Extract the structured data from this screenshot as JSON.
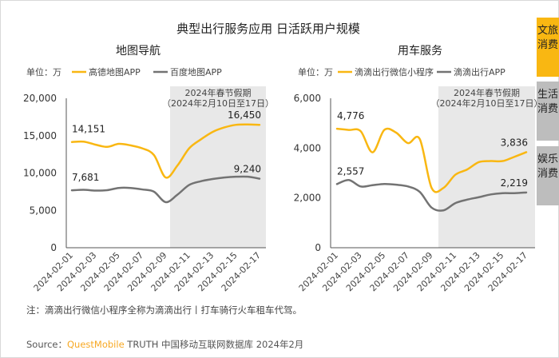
{
  "title": "典型出行服务应用 日活跃用户规模",
  "tabs": [
    {
      "label": "文旅消费",
      "active": true,
      "color": "#f9b712"
    },
    {
      "label": "生活消费",
      "active": false,
      "color": "#bdbdbd"
    },
    {
      "label": "娱乐消费",
      "active": false,
      "color": "#bdbdbd"
    }
  ],
  "note": "注：滴滴出行微信小程序全称为滴滴出行丨打车骑行火车租车代驾。",
  "source": {
    "prefix": "Source：",
    "brand": "QuestMobile",
    "text": " TRUTH 中国移动互联网数据库 2024年2月"
  },
  "chart_data": [
    {
      "type": "line",
      "title": "地图导航",
      "unit_label": "单位：万",
      "x": [
        "2024-02-01",
        "2024-02-02",
        "2024-02-03",
        "2024-02-04",
        "2024-02-05",
        "2024-02-06",
        "2024-02-07",
        "2024-02-08",
        "2024-02-09",
        "2024-02-10",
        "2024-02-11",
        "2024-02-12",
        "2024-02-13",
        "2024-02-14",
        "2024-02-15",
        "2024-02-16",
        "2024-02-17"
      ],
      "x_tick_labels": [
        "2024-02-01",
        "2024-02-03",
        "2024-02-05",
        "2024-02-07",
        "2024-02-09",
        "2024-02-11",
        "2024-02-13",
        "2024-02-15",
        "2024-02-17"
      ],
      "ylim": [
        0,
        20000
      ],
      "y_ticks": [
        "0",
        "5,000",
        "10,000",
        "15,000",
        "20,000"
      ],
      "y_tick_values": [
        0,
        5000,
        10000,
        15000,
        20000
      ],
      "legend": "top",
      "grid": false,
      "highlight": {
        "label1": "2024年春节假期",
        "label2": "（2024年2月10日至17日）",
        "from": "2024-02-10",
        "to": "2024-02-17"
      },
      "series": [
        {
          "name": "高德地图APP",
          "color": "#f9b712",
          "values": [
            14151,
            14200,
            13800,
            13500,
            13900,
            13700,
            13300,
            12400,
            9400,
            11000,
            13300,
            14500,
            15500,
            16100,
            16450,
            16500,
            16450
          ],
          "labels": {
            "first": "14,151",
            "last": "16,450"
          }
        },
        {
          "name": "百度地图APP",
          "color": "#737373",
          "values": [
            7681,
            7760,
            7650,
            7700,
            8000,
            8000,
            7800,
            7500,
            6100,
            7100,
            8400,
            8900,
            9200,
            9400,
            9500,
            9500,
            9240
          ],
          "labels": {
            "first": "7,681",
            "last": "9,240"
          }
        }
      ]
    },
    {
      "type": "line",
      "title": "用车服务",
      "unit_label": "单位：万",
      "x": [
        "2024-02-01",
        "2024-02-02",
        "2024-02-03",
        "2024-02-04",
        "2024-02-05",
        "2024-02-06",
        "2024-02-07",
        "2024-02-08",
        "2024-02-09",
        "2024-02-10",
        "2024-02-11",
        "2024-02-12",
        "2024-02-13",
        "2024-02-14",
        "2024-02-15",
        "2024-02-16",
        "2024-02-17"
      ],
      "x_tick_labels": [
        "2024-02-01",
        "2024-02-03",
        "2024-02-05",
        "2024-02-07",
        "2024-02-09",
        "2024-02-11",
        "2024-02-13",
        "2024-02-15",
        "2024-02-17"
      ],
      "ylim": [
        0,
        6000
      ],
      "y_ticks": [
        "0",
        "2,000",
        "4,000",
        "6,000"
      ],
      "y_tick_values": [
        0,
        2000,
        4000,
        6000
      ],
      "legend": "top",
      "grid": false,
      "highlight": {
        "label1": "2024年春节假期",
        "label2": "（2024年2月10日至17日）",
        "from": "2024-02-10",
        "to": "2024-02-17"
      },
      "series": [
        {
          "name": "滴滴出行微信小程序",
          "color": "#f9b712",
          "values": [
            4776,
            4730,
            4680,
            3830,
            4730,
            4620,
            4200,
            4360,
            2400,
            2400,
            2930,
            3140,
            3440,
            3480,
            3480,
            3650,
            3836
          ],
          "labels": {
            "first": "4,776",
            "last": "3,836"
          }
        },
        {
          "name": "滴滴出行APP",
          "color": "#737373",
          "values": [
            2557,
            2720,
            2460,
            2510,
            2560,
            2530,
            2460,
            2240,
            1610,
            1500,
            1790,
            1930,
            2030,
            2140,
            2190,
            2190,
            2219
          ],
          "labels": {
            "first": "2,557",
            "last": "2,219"
          }
        }
      ]
    }
  ]
}
